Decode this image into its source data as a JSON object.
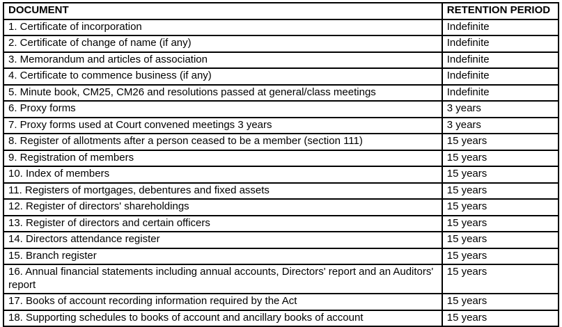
{
  "colors": {
    "border": "#000000",
    "text": "#000000",
    "background": "#ffffff"
  },
  "table": {
    "headers": [
      "DOCUMENT",
      "RETENTION PERIOD"
    ],
    "rows": [
      {
        "document": "1. Certificate of incorporation",
        "retention": "Indefinite"
      },
      {
        "document": "2. Certificate of change of name (if any)",
        "retention": "Indefinite"
      },
      {
        "document": "3. Memorandum and articles of association",
        "retention": "Indefinite"
      },
      {
        "document": "4. Certificate to commence business (if any)",
        "retention": "Indefinite"
      },
      {
        "document": "5. Minute book, CM25, CM26 and resolutions passed at general/class meetings",
        "retention": "Indefinite"
      },
      {
        "document": "6. Proxy forms",
        "retention": "3 years"
      },
      {
        "document": "7. Proxy forms used at Court convened meetings 3 years",
        "retention": "3 years"
      },
      {
        "document": "8. Register of allotments after a person ceased to be a member (section 111)",
        "retention": "15 years"
      },
      {
        "document": "9. Registration of members",
        "retention": "15 years"
      },
      {
        "document": "10. Index of members",
        "retention": "15 years"
      },
      {
        "document": "11. Registers of mortgages, debentures and fixed assets",
        "retention": "15 years"
      },
      {
        "document": "12. Register of directors' shareholdings",
        "retention": "15 years"
      },
      {
        "document": "13. Register of directors and certain officers",
        "retention": "15 years"
      },
      {
        "document": "14. Directors attendance register",
        "retention": "15 years"
      },
      {
        "document": "15. Branch register",
        "retention": "15 years"
      },
      {
        "document": "16. Annual financial statements including annual accounts, Directors' report and an Auditors' report",
        "retention": "15 years"
      },
      {
        "document": "17. Books of account recording information required by the Act",
        "retention": "15 years"
      },
      {
        "document": "18. Supporting schedules to books of account and ancillary books of account",
        "retention": "15 years"
      }
    ]
  }
}
